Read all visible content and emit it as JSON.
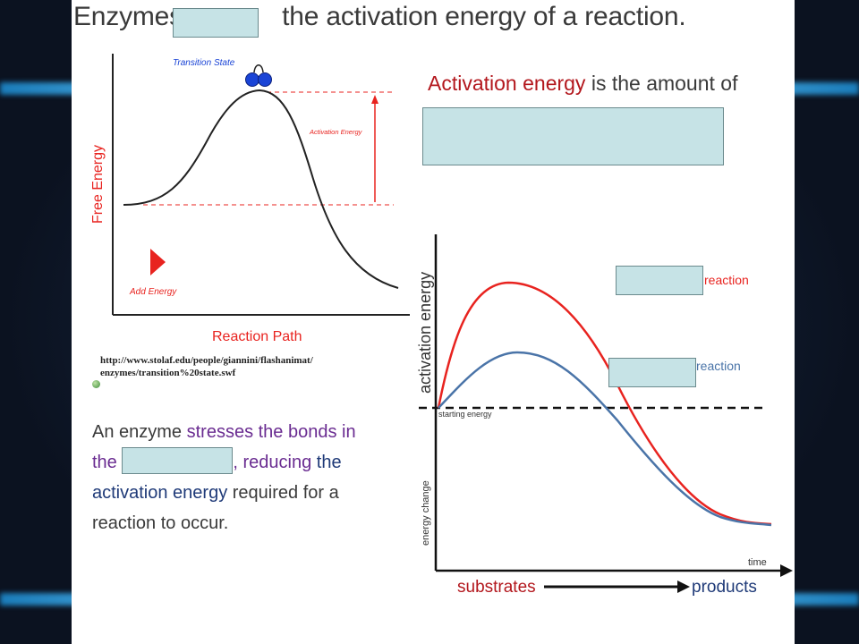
{
  "slide": {
    "title_before_blank": "Enzymes ",
    "title_after_blank": "the activation energy of a reaction.",
    "definition_highlight": "Activation energy",
    "definition_rest": " is the amount of"
  },
  "left_diagram": {
    "y_axis_label": "Free Energy",
    "x_axis_label": "Reaction Path",
    "transition_state_label": "Transition State",
    "activation_energy_label": "Activation Energy",
    "add_energy_label": "Add Energy",
    "credit_line_1": "http://www.stolaf.edu/people/giannini/flashanimat/",
    "credit_line_2": "enzymes/transition%20state.swf"
  },
  "body_text": {
    "part1": "An enzyme ",
    "part2": "stresses the bonds in the",
    "part3": ", reducing",
    "part4": "the activation energy",
    "part5": " required for a reaction to occur."
  },
  "right_diagram": {
    "y_axis_upper_label": "activation energy",
    "y_axis_lower_label": "energy change",
    "starting_energy_label": "starting energy",
    "time_label": "time",
    "substrates_label": "substrates",
    "products_label": "products",
    "upper_curve_suffix": "reaction",
    "lower_curve_suffix": "reaction"
  },
  "colors": {
    "red": "#e8231f",
    "blue": "#4a74a8",
    "title_red": "#b3171d",
    "purple": "#6a2c91",
    "navy": "#1f3a78",
    "blank_fill": "#c6e3e6"
  }
}
